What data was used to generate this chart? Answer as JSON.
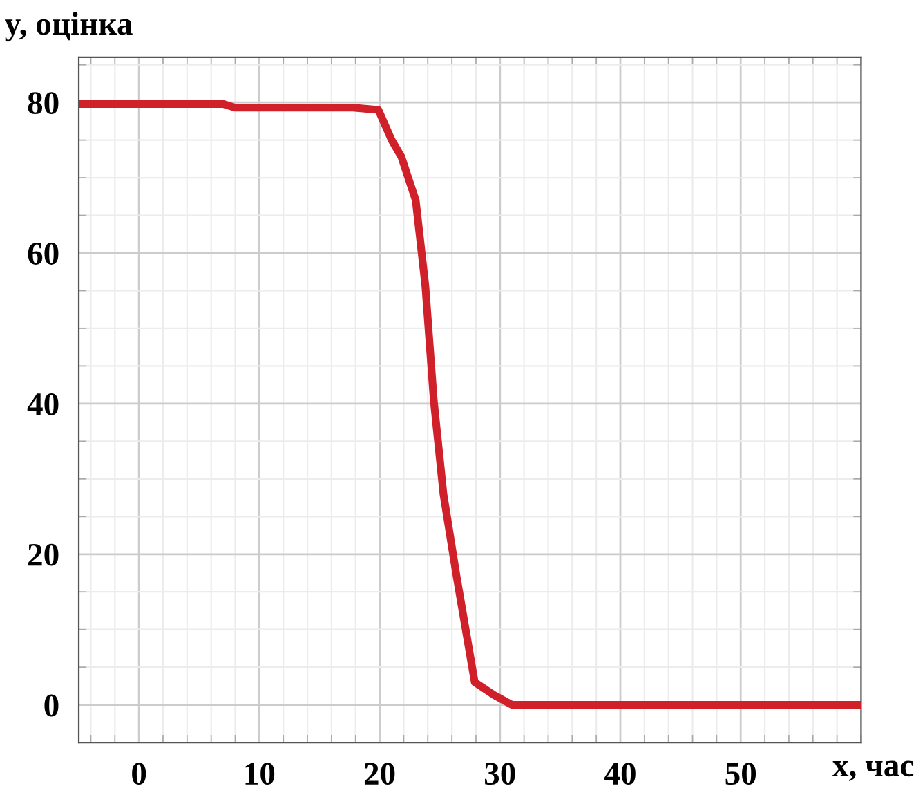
{
  "chart_data": {
    "type": "line",
    "xlabel": "x, час",
    "ylabel": "y, оцінка",
    "xlim": [
      -5,
      60
    ],
    "ylim": [
      -5,
      86
    ],
    "xticks": [
      0,
      10,
      20,
      30,
      40,
      50
    ],
    "yticks": [
      0,
      20,
      40,
      60,
      80
    ],
    "grid": true,
    "marker": "none",
    "line_style": "solid",
    "series": [
      {
        "color": "#d0202a",
        "x": [
          -5,
          7,
          8,
          17.8,
          19.9,
          21,
          21.8,
          23,
          23.8,
          24.5,
          25.3,
          26.4,
          27.9,
          29.5,
          31,
          60
        ],
        "values": [
          79.8,
          79.8,
          79.3,
          79.3,
          79,
          75,
          72.8,
          67,
          55.6,
          40.4,
          28,
          17,
          3,
          1.3,
          0,
          0
        ]
      }
    ]
  }
}
